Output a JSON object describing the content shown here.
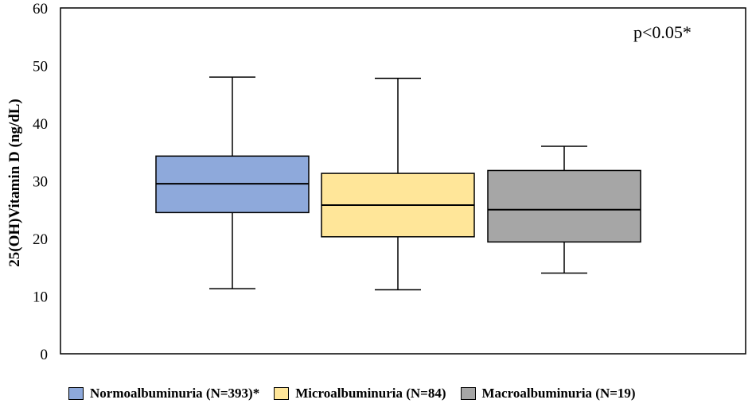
{
  "chart_data": {
    "type": "box",
    "title": "",
    "xlabel": "",
    "ylabel": "25(OH)Vitamin D (ng/dL)",
    "ylim": [
      0,
      60
    ],
    "yticks": [
      "0",
      "10",
      "20",
      "30",
      "40",
      "50",
      "60"
    ],
    "annotation": "p<0.05*",
    "grid": false,
    "legend_position": "bottom",
    "series": [
      {
        "name": "Normoalbuminuria (N=393)*",
        "color": "#8ea9db",
        "min": 11.3,
        "q1": 24.5,
        "median": 29.5,
        "q3": 34.3,
        "max": 48.0
      },
      {
        "name": "Microalbuminuria (N=84)",
        "color": "#ffe699",
        "min": 11.1,
        "q1": 20.3,
        "median": 25.8,
        "q3": 31.3,
        "max": 47.8
      },
      {
        "name": "Macroalbuminuria (N=19)",
        "color": "#a6a6a6",
        "min": 14.0,
        "q1": 19.4,
        "median": 25.0,
        "q3": 31.8,
        "max": 36.0
      }
    ]
  }
}
